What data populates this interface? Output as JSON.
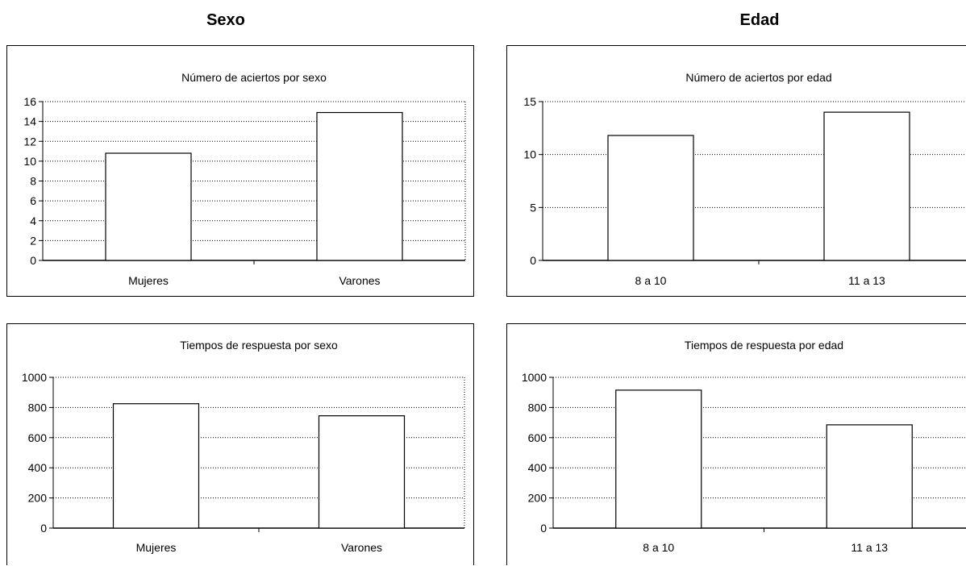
{
  "headers": {
    "left": "Sexo",
    "right": "Edad"
  },
  "chart_data": [
    {
      "type": "bar",
      "title": "Número de aciertos por sexo",
      "categories": [
        "Mujeres",
        "Varones"
      ],
      "values": [
        10.8,
        14.9
      ],
      "ylim": [
        0,
        16
      ],
      "yticks": [
        0,
        2,
        4,
        6,
        8,
        10,
        12,
        14,
        16
      ],
      "xlabel": "",
      "ylabel": "",
      "grid": true,
      "legend": "none"
    },
    {
      "type": "bar",
      "title": "Número de aciertos por edad",
      "categories": [
        "8 a 10",
        "11 a 13"
      ],
      "values": [
        11.8,
        14
      ],
      "ylim": [
        0,
        15
      ],
      "yticks": [
        0,
        5,
        10,
        15
      ],
      "xlabel": "",
      "ylabel": "",
      "grid": true,
      "legend": "none"
    },
    {
      "type": "bar",
      "title": "Tiempos de respuesta por sexo",
      "categories": [
        "Mujeres",
        "Varones"
      ],
      "values": [
        825,
        745
      ],
      "ylim": [
        0,
        1000
      ],
      "yticks": [
        0,
        200,
        400,
        600,
        800,
        1000
      ],
      "xlabel": "",
      "ylabel": "",
      "grid": true,
      "legend": "none"
    },
    {
      "type": "bar",
      "title": "Tiempos de respuesta por edad",
      "categories": [
        "8 a 10",
        "11 a 13"
      ],
      "values": [
        915,
        685
      ],
      "ylim": [
        0,
        1000
      ],
      "yticks": [
        0,
        200,
        400,
        600,
        800,
        1000
      ],
      "xlabel": "",
      "ylabel": "",
      "grid": true,
      "legend": "none"
    }
  ]
}
